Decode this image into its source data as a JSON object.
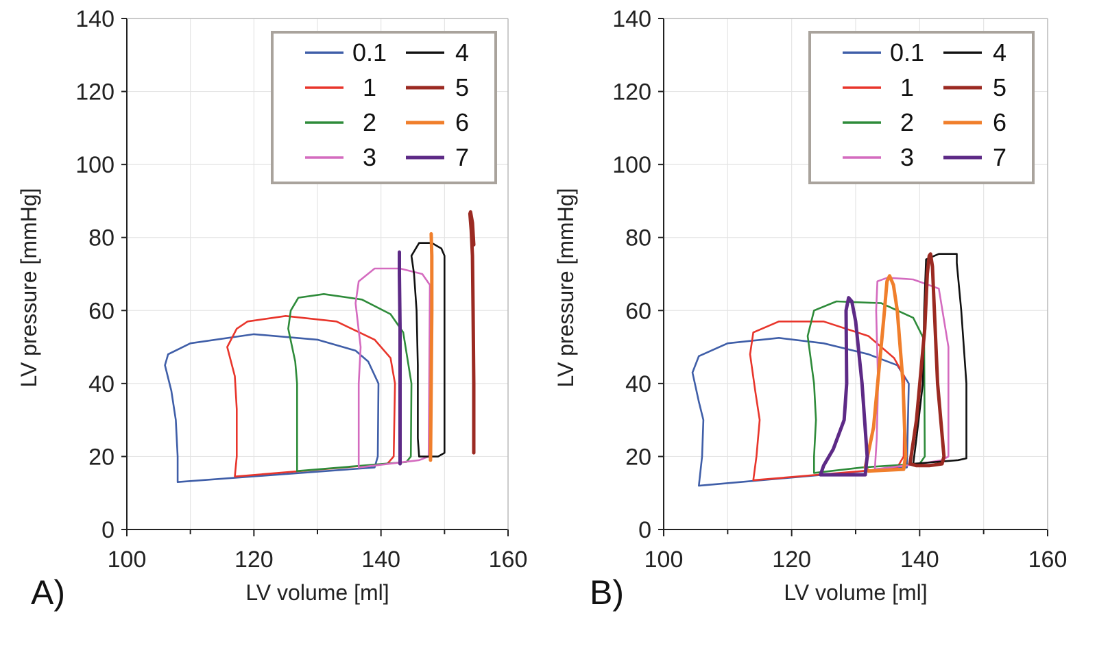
{
  "chart_data": [
    {
      "type": "line",
      "panel_label": "A)",
      "xlabel": "LV volume [ml]",
      "ylabel": "LV pressure [mmHg]",
      "xlim": [
        100,
        160
      ],
      "ylim": [
        0,
        140
      ],
      "xticks": [
        100,
        120,
        140,
        160
      ],
      "yticks": [
        0,
        20,
        40,
        60,
        80,
        100,
        120,
        140
      ],
      "grid": true,
      "legend_position": "top-right",
      "series": [
        {
          "name": "0.1",
          "color": "#3f5ea8",
          "thick": false,
          "x": [
            108,
            139,
            139.5,
            139.6,
            138,
            136,
            130,
            120,
            110,
            106.5,
            106,
            107,
            107.7,
            108,
            108
          ],
          "y": [
            13,
            17,
            20,
            40,
            46,
            49,
            52,
            53.5,
            51,
            48,
            45,
            38,
            30,
            20,
            13
          ]
        },
        {
          "name": "1",
          "color": "#e8352b",
          "thick": false,
          "x": [
            117,
            141,
            142,
            142.2,
            141.5,
            139,
            133,
            125,
            119,
            117.3,
            115.8,
            117,
            117.3,
            117.3,
            117
          ],
          "y": [
            14.5,
            18,
            20,
            40,
            47,
            52,
            57,
            58.5,
            57,
            55,
            50,
            42,
            33,
            20,
            14.5
          ]
        },
        {
          "name": "2",
          "color": "#2e8b3a",
          "thick": false,
          "x": [
            126.8,
            144,
            144.7,
            144.8,
            143.5,
            141.5,
            137,
            131,
            127,
            125.8,
            125.4,
            126.5,
            126.8,
            126.8,
            126.8
          ],
          "y": [
            16,
            18.5,
            20,
            40,
            54,
            59,
            63,
            64.5,
            63.5,
            60,
            55,
            46,
            40,
            20,
            16
          ]
        },
        {
          "name": "3",
          "color": "#d46bbf",
          "thick": false,
          "x": [
            136.5,
            146,
            147.5,
            147.7,
            146.5,
            143,
            139,
            136.5,
            136,
            136.8,
            136.5,
            136.5,
            136.5
          ],
          "y": [
            17,
            19,
            20,
            67,
            70,
            71.5,
            71.5,
            68,
            62,
            50,
            40,
            20,
            17
          ]
        },
        {
          "name": "4",
          "color": "#111111",
          "thick": false,
          "x": [
            146,
            149,
            150,
            150,
            149.5,
            148,
            146,
            144.8,
            145.2,
            145.6,
            145.8,
            145.8,
            146
          ],
          "y": [
            20,
            20,
            21,
            75,
            77,
            78.5,
            78.5,
            75,
            70,
            60,
            45,
            25,
            20
          ]
        },
        {
          "name": "5",
          "color": "#9b2a22",
          "thick": true,
          "x": [
            154.6,
            154.6,
            154.5,
            154.4,
            154.2,
            154,
            154.1,
            154.4,
            154.6
          ],
          "y": [
            21,
            40,
            60,
            75,
            82,
            86.5,
            87,
            84,
            78
          ]
        },
        {
          "name": "6",
          "color": "#f07f2c",
          "thick": true,
          "x": [
            147.8,
            147.9,
            148,
            148,
            147.9
          ],
          "y": [
            19,
            40,
            60,
            75,
            81
          ]
        },
        {
          "name": "7",
          "color": "#5d2a86",
          "thick": true,
          "x": [
            143,
            143,
            143,
            142.9,
            142.9
          ],
          "y": [
            18,
            35,
            55,
            70,
            76
          ]
        }
      ]
    },
    {
      "type": "line",
      "panel_label": "B)",
      "xlabel": "LV volume [ml]",
      "ylabel": "LV pressure [mmHg]",
      "xlim": [
        100,
        160
      ],
      "ylim": [
        0,
        140
      ],
      "xticks": [
        100,
        120,
        140,
        160
      ],
      "yticks": [
        0,
        20,
        40,
        60,
        80,
        100,
        120,
        140
      ],
      "grid": true,
      "legend_position": "top-right",
      "series": [
        {
          "name": "0.1",
          "color": "#3f5ea8",
          "thick": false,
          "x": [
            105.5,
            131.5,
            138,
            138.3,
            136.5,
            132,
            125,
            118,
            110,
            105.5,
            104.5,
            105.5,
            106.2,
            106,
            105.5
          ],
          "y": [
            12,
            16,
            17,
            40,
            45,
            48,
            51,
            52.5,
            51,
            47.5,
            43,
            35,
            30,
            20,
            12
          ]
        },
        {
          "name": "1",
          "color": "#e8352b",
          "thick": false,
          "x": [
            114,
            131,
            136.5,
            137.5,
            137.6,
            136,
            132,
            125,
            118,
            114,
            113.5,
            114.3,
            115,
            114.5,
            114
          ],
          "y": [
            13.5,
            16,
            17,
            20,
            42,
            47,
            53,
            57,
            57,
            54,
            48,
            38,
            30,
            20,
            13.5
          ]
        },
        {
          "name": "2",
          "color": "#2e8b3a",
          "thick": false,
          "x": [
            123.5,
            131,
            140,
            140.8,
            140.7,
            139,
            134,
            127,
            123.5,
            122.5,
            123.5,
            123.8,
            123.5,
            123.5
          ],
          "y": [
            15.5,
            17,
            18,
            20,
            52,
            58,
            62,
            62.5,
            60,
            53,
            40,
            30,
            20,
            15.5
          ]
        },
        {
          "name": "3",
          "color": "#d46bbf",
          "thick": false,
          "x": [
            133,
            140,
            143.5,
            144.5,
            144.5,
            143,
            139,
            135,
            133.4,
            133.2,
            133.5,
            133.3,
            133
          ],
          "y": [
            16.5,
            18,
            19,
            20,
            50,
            66,
            68.5,
            69,
            68,
            60,
            40,
            25,
            16.5
          ]
        },
        {
          "name": "4",
          "color": "#111111",
          "thick": false,
          "x": [
            139,
            146,
            147.3,
            147.3,
            146.5,
            145.8,
            145.8,
            143,
            141,
            140.7,
            140.5,
            139.5,
            139
          ],
          "y": [
            18,
            19,
            19.5,
            40,
            60,
            73,
            75.5,
            75.5,
            74,
            60,
            40,
            25,
            18
          ]
        },
        {
          "name": "5",
          "color": "#9b2a22",
          "thick": true,
          "x": [
            141.5,
            143.5,
            143.8,
            142.8,
            142.3,
            142,
            141.7,
            141.5,
            141.2,
            140.8,
            139.5,
            138.5,
            139.5,
            141.5
          ],
          "y": [
            17.5,
            18,
            20,
            40,
            60,
            72,
            75.5,
            75,
            70,
            55,
            30,
            18,
            17.5,
            17.5
          ]
        },
        {
          "name": "6",
          "color": "#f07f2c",
          "thick": true,
          "x": [
            132,
            137.5,
            137.8,
            137.4,
            136.5,
            135.9,
            135.3,
            134.9,
            134.4,
            132.8,
            131.5,
            132
          ],
          "y": [
            16,
            16.5,
            20,
            40,
            60,
            67,
            69.5,
            68,
            58,
            28,
            17,
            16
          ]
        },
        {
          "name": "7",
          "color": "#5d2a86",
          "thick": true,
          "x": [
            124.5,
            131.5,
            131.8,
            131,
            130,
            129.4,
            128.9,
            128.5,
            128.6,
            128.2,
            126.5,
            125,
            124.5
          ],
          "y": [
            15,
            15,
            20,
            40,
            57,
            62.5,
            63.5,
            60,
            40,
            30,
            22,
            17.5,
            15
          ]
        }
      ]
    }
  ]
}
